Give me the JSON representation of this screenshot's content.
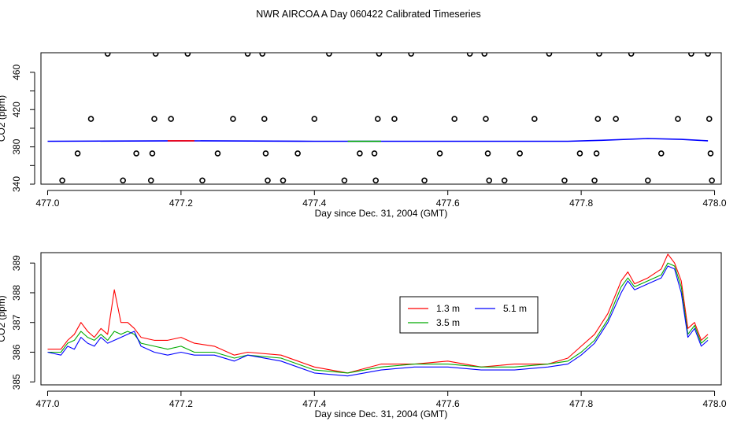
{
  "title": "NWR AIRCOA A  Day 060422  Calibrated Timeseries",
  "chart_data": [
    {
      "type": "scatter",
      "xlabel": "Day since Dec. 31, 2004 (GMT)",
      "ylabel": "CO2 (ppm)",
      "xlim": [
        476.99,
        478.01
      ],
      "ylim": [
        340,
        481
      ],
      "xticks": [
        "477.0",
        "477.2",
        "477.4",
        "477.6",
        "477.8",
        "478.0"
      ],
      "yticks": [
        "340",
        "380",
        "420",
        "460"
      ],
      "yticks_minor": [
        360,
        400,
        440
      ],
      "points": [
        [
          477.022,
          344
        ],
        [
          477.045,
          373
        ],
        [
          477.065,
          410
        ],
        [
          477.09,
          480
        ],
        [
          477.113,
          344
        ],
        [
          477.133,
          373
        ],
        [
          477.155,
          344
        ],
        [
          477.157,
          373
        ],
        [
          477.16,
          410
        ],
        [
          477.162,
          480
        ],
        [
          477.185,
          410
        ],
        [
          477.21,
          480
        ],
        [
          477.232,
          344
        ],
        [
          477.255,
          373
        ],
        [
          477.278,
          410
        ],
        [
          477.3,
          480
        ],
        [
          477.322,
          480
        ],
        [
          477.325,
          410
        ],
        [
          477.327,
          373
        ],
        [
          477.33,
          344
        ],
        [
          477.353,
          344
        ],
        [
          477.375,
          373
        ],
        [
          477.4,
          410
        ],
        [
          477.422,
          480
        ],
        [
          477.445,
          344
        ],
        [
          477.468,
          373
        ],
        [
          477.49,
          373
        ],
        [
          477.492,
          344
        ],
        [
          477.495,
          410
        ],
        [
          477.497,
          480
        ],
        [
          477.52,
          410
        ],
        [
          477.545,
          480
        ],
        [
          477.565,
          344
        ],
        [
          477.588,
          373
        ],
        [
          477.61,
          410
        ],
        [
          477.633,
          480
        ],
        [
          477.655,
          480
        ],
        [
          477.657,
          410
        ],
        [
          477.66,
          373
        ],
        [
          477.662,
          344
        ],
        [
          477.685,
          344
        ],
        [
          477.708,
          373
        ],
        [
          477.73,
          410
        ],
        [
          477.752,
          480
        ],
        [
          477.775,
          344
        ],
        [
          477.798,
          373
        ],
        [
          477.82,
          344
        ],
        [
          477.823,
          373
        ],
        [
          477.825,
          410
        ],
        [
          477.827,
          480
        ],
        [
          477.852,
          410
        ],
        [
          477.875,
          480
        ],
        [
          477.9,
          344
        ],
        [
          477.92,
          373
        ],
        [
          477.945,
          410
        ],
        [
          477.965,
          480
        ],
        [
          477.99,
          480
        ],
        [
          477.992,
          410
        ],
        [
          477.994,
          373
        ],
        [
          477.996,
          344
        ]
      ],
      "lines": [
        {
          "color": "#0000ff",
          "x": [
            477.0,
            477.2,
            477.4,
            477.6,
            477.78,
            477.83,
            477.9,
            477.95,
            477.99
          ],
          "values": [
            386,
            386.5,
            386,
            386,
            386,
            387,
            389,
            388,
            386.5
          ]
        },
        {
          "color": "#ff0000",
          "x": [
            477.18,
            477.22
          ],
          "values": [
            386.5,
            386.5
          ]
        },
        {
          "color": "#00aa00",
          "x": [
            477.45,
            477.5
          ],
          "values": [
            386,
            386
          ]
        }
      ]
    },
    {
      "type": "line",
      "xlabel": "Day since Dec. 31, 2004 (GMT)",
      "ylabel": "CO2 (ppm)",
      "xlim": [
        476.99,
        478.01
      ],
      "ylim": [
        384.9,
        389.35
      ],
      "xticks": [
        "477.0",
        "477.2",
        "477.4",
        "477.6",
        "477.8",
        "478.0"
      ],
      "yticks": [
        "385",
        "386",
        "387",
        "388",
        "389"
      ],
      "legend": "center-right",
      "series": [
        {
          "name": "1.3 m",
          "color": "#ff0000",
          "x": [
            477.0,
            477.02,
            477.03,
            477.04,
            477.05,
            477.06,
            477.07,
            477.08,
            477.09,
            477.1,
            477.11,
            477.12,
            477.13,
            477.14,
            477.16,
            477.18,
            477.2,
            477.22,
            477.25,
            477.28,
            477.3,
            477.35,
            477.4,
            477.45,
            477.5,
            477.55,
            477.6,
            477.65,
            477.7,
            477.75,
            477.78,
            477.8,
            477.82,
            477.84,
            477.86,
            477.87,
            477.88,
            477.9,
            477.92,
            477.93,
            477.94,
            477.95,
            477.96,
            477.97,
            477.98,
            477.99
          ],
          "values": [
            386.1,
            386.1,
            386.4,
            386.6,
            387.0,
            386.7,
            386.5,
            386.8,
            386.6,
            388.1,
            387.0,
            387.0,
            386.8,
            386.5,
            386.4,
            386.4,
            386.5,
            386.3,
            386.2,
            385.9,
            386.0,
            385.9,
            385.5,
            385.3,
            385.6,
            385.6,
            385.7,
            385.5,
            385.6,
            385.6,
            385.8,
            386.2,
            386.6,
            387.3,
            388.4,
            388.7,
            388.3,
            388.5,
            388.8,
            389.3,
            389.0,
            388.4,
            386.8,
            387.0,
            386.4,
            386.6
          ]
        },
        {
          "name": "3.5 m",
          "color": "#00aa00",
          "x": [
            477.0,
            477.02,
            477.03,
            477.04,
            477.05,
            477.06,
            477.07,
            477.08,
            477.09,
            477.1,
            477.11,
            477.12,
            477.13,
            477.14,
            477.16,
            477.18,
            477.2,
            477.22,
            477.25,
            477.28,
            477.3,
            477.35,
            477.4,
            477.45,
            477.5,
            477.55,
            477.6,
            477.65,
            477.7,
            477.75,
            477.78,
            477.8,
            477.82,
            477.84,
            477.86,
            477.87,
            477.88,
            477.9,
            477.92,
            477.93,
            477.94,
            477.95,
            477.96,
            477.97,
            477.98,
            477.99
          ],
          "values": [
            386.0,
            386.0,
            386.3,
            386.4,
            386.7,
            386.5,
            386.4,
            386.6,
            386.4,
            386.7,
            386.6,
            386.7,
            386.6,
            386.3,
            386.2,
            386.1,
            386.2,
            386.0,
            386.0,
            385.8,
            385.9,
            385.8,
            385.4,
            385.3,
            385.5,
            385.6,
            385.6,
            385.5,
            385.5,
            385.6,
            385.7,
            386.0,
            386.4,
            387.1,
            388.2,
            388.5,
            388.2,
            388.4,
            388.6,
            389.0,
            388.9,
            388.2,
            386.6,
            386.9,
            386.3,
            386.5
          ]
        },
        {
          "name": "5.1 m",
          "color": "#0000ff",
          "x": [
            477.0,
            477.02,
            477.03,
            477.04,
            477.05,
            477.06,
            477.07,
            477.08,
            477.09,
            477.1,
            477.11,
            477.12,
            477.13,
            477.14,
            477.16,
            477.18,
            477.2,
            477.22,
            477.25,
            477.28,
            477.3,
            477.35,
            477.4,
            477.45,
            477.5,
            477.55,
            477.6,
            477.65,
            477.7,
            477.75,
            477.78,
            477.8,
            477.82,
            477.84,
            477.86,
            477.87,
            477.88,
            477.9,
            477.92,
            477.93,
            477.94,
            477.95,
            477.96,
            477.97,
            477.98,
            477.99
          ],
          "values": [
            386.0,
            385.9,
            386.2,
            386.1,
            386.5,
            386.3,
            386.2,
            386.5,
            386.3,
            386.4,
            386.5,
            386.6,
            386.7,
            386.2,
            386.0,
            385.9,
            386.0,
            385.9,
            385.9,
            385.7,
            385.9,
            385.7,
            385.3,
            385.2,
            385.4,
            385.5,
            385.5,
            385.4,
            385.4,
            385.5,
            385.6,
            385.9,
            386.3,
            387.0,
            388.0,
            388.4,
            388.1,
            388.3,
            388.5,
            388.9,
            388.8,
            388.0,
            386.5,
            386.8,
            386.2,
            386.4
          ]
        }
      ]
    }
  ]
}
